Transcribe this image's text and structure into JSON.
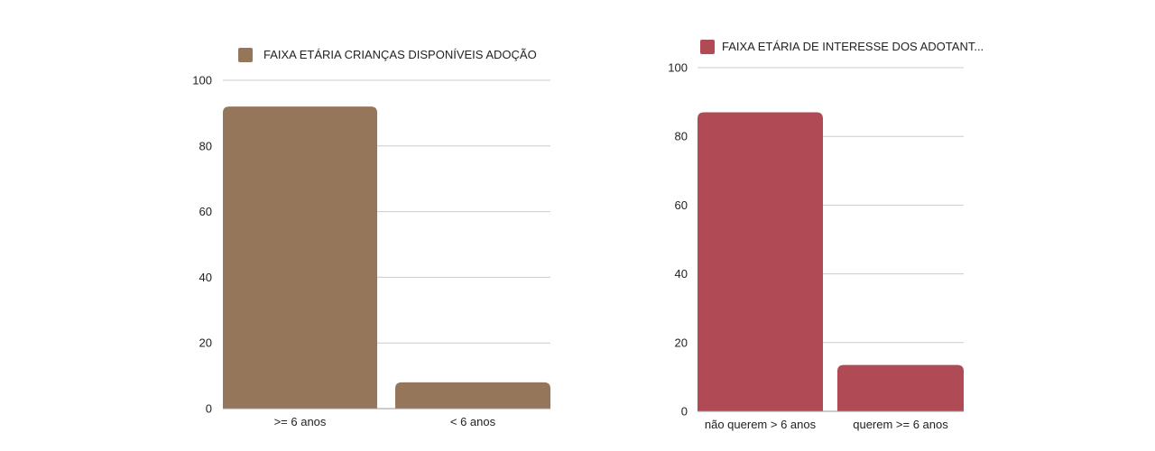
{
  "chart_data": [
    {
      "type": "bar",
      "categories": [
        ">= 6 anos",
        "< 6 anos"
      ],
      "series": [
        {
          "name": "FAIXA ETÁRIA CRIANÇAS DISPONÍVEIS ADOÇÃO",
          "values": [
            92,
            8
          ],
          "color": "#95765b"
        }
      ],
      "ylim": [
        0,
        100
      ],
      "yticks": [
        "0",
        "20",
        "40",
        "60",
        "80",
        "100"
      ],
      "grid": true,
      "legend": "top"
    },
    {
      "type": "bar",
      "categories": [
        "não querem > 6 anos",
        "querem >= 6 anos"
      ],
      "series": [
        {
          "name": "FAIXA ETÁRIA DE INTERESSE DOS ADOTANT...",
          "values": [
            87,
            13.5
          ],
          "color": "#b04a55"
        }
      ],
      "ylim": [
        0,
        100
      ],
      "yticks": [
        "0",
        "20",
        "40",
        "60",
        "80",
        "100"
      ],
      "grid": true,
      "legend": "top"
    }
  ]
}
